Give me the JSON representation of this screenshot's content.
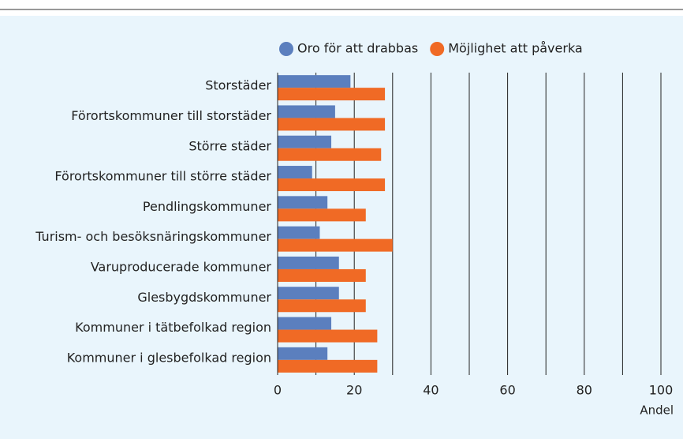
{
  "chart_data": {
    "type": "hbar",
    "categories": [
      "Storstäder",
      "Förortskommuner till storstäder",
      "Större städer",
      "Förortskommuner till större städer",
      "Pendlingskommuner",
      "Turism- och besöksnäringskommuner",
      "Varuproducerade kommuner",
      "Glesbygdskommuner",
      "Kommuner i tätbefolkad region",
      "Kommuner i glesbefolkad region"
    ],
    "series": [
      {
        "name": "Oro för att drabbas",
        "color": "#5b7fbe",
        "values": [
          19,
          15,
          14,
          9,
          13,
          11,
          16,
          16,
          14,
          13
        ]
      },
      {
        "name": "Möjlighet att påverka",
        "color": "#f06a25",
        "values": [
          28,
          28,
          27,
          28,
          23,
          30,
          23,
          23,
          26,
          26
        ]
      }
    ],
    "xlim": [
      0,
      100
    ],
    "xticks": [
      0,
      20,
      40,
      60,
      80,
      100
    ],
    "xgrid": [
      10,
      20,
      30,
      40,
      50,
      60,
      70,
      80,
      90,
      100
    ],
    "xlabel": "Andel",
    "legend": "top"
  }
}
